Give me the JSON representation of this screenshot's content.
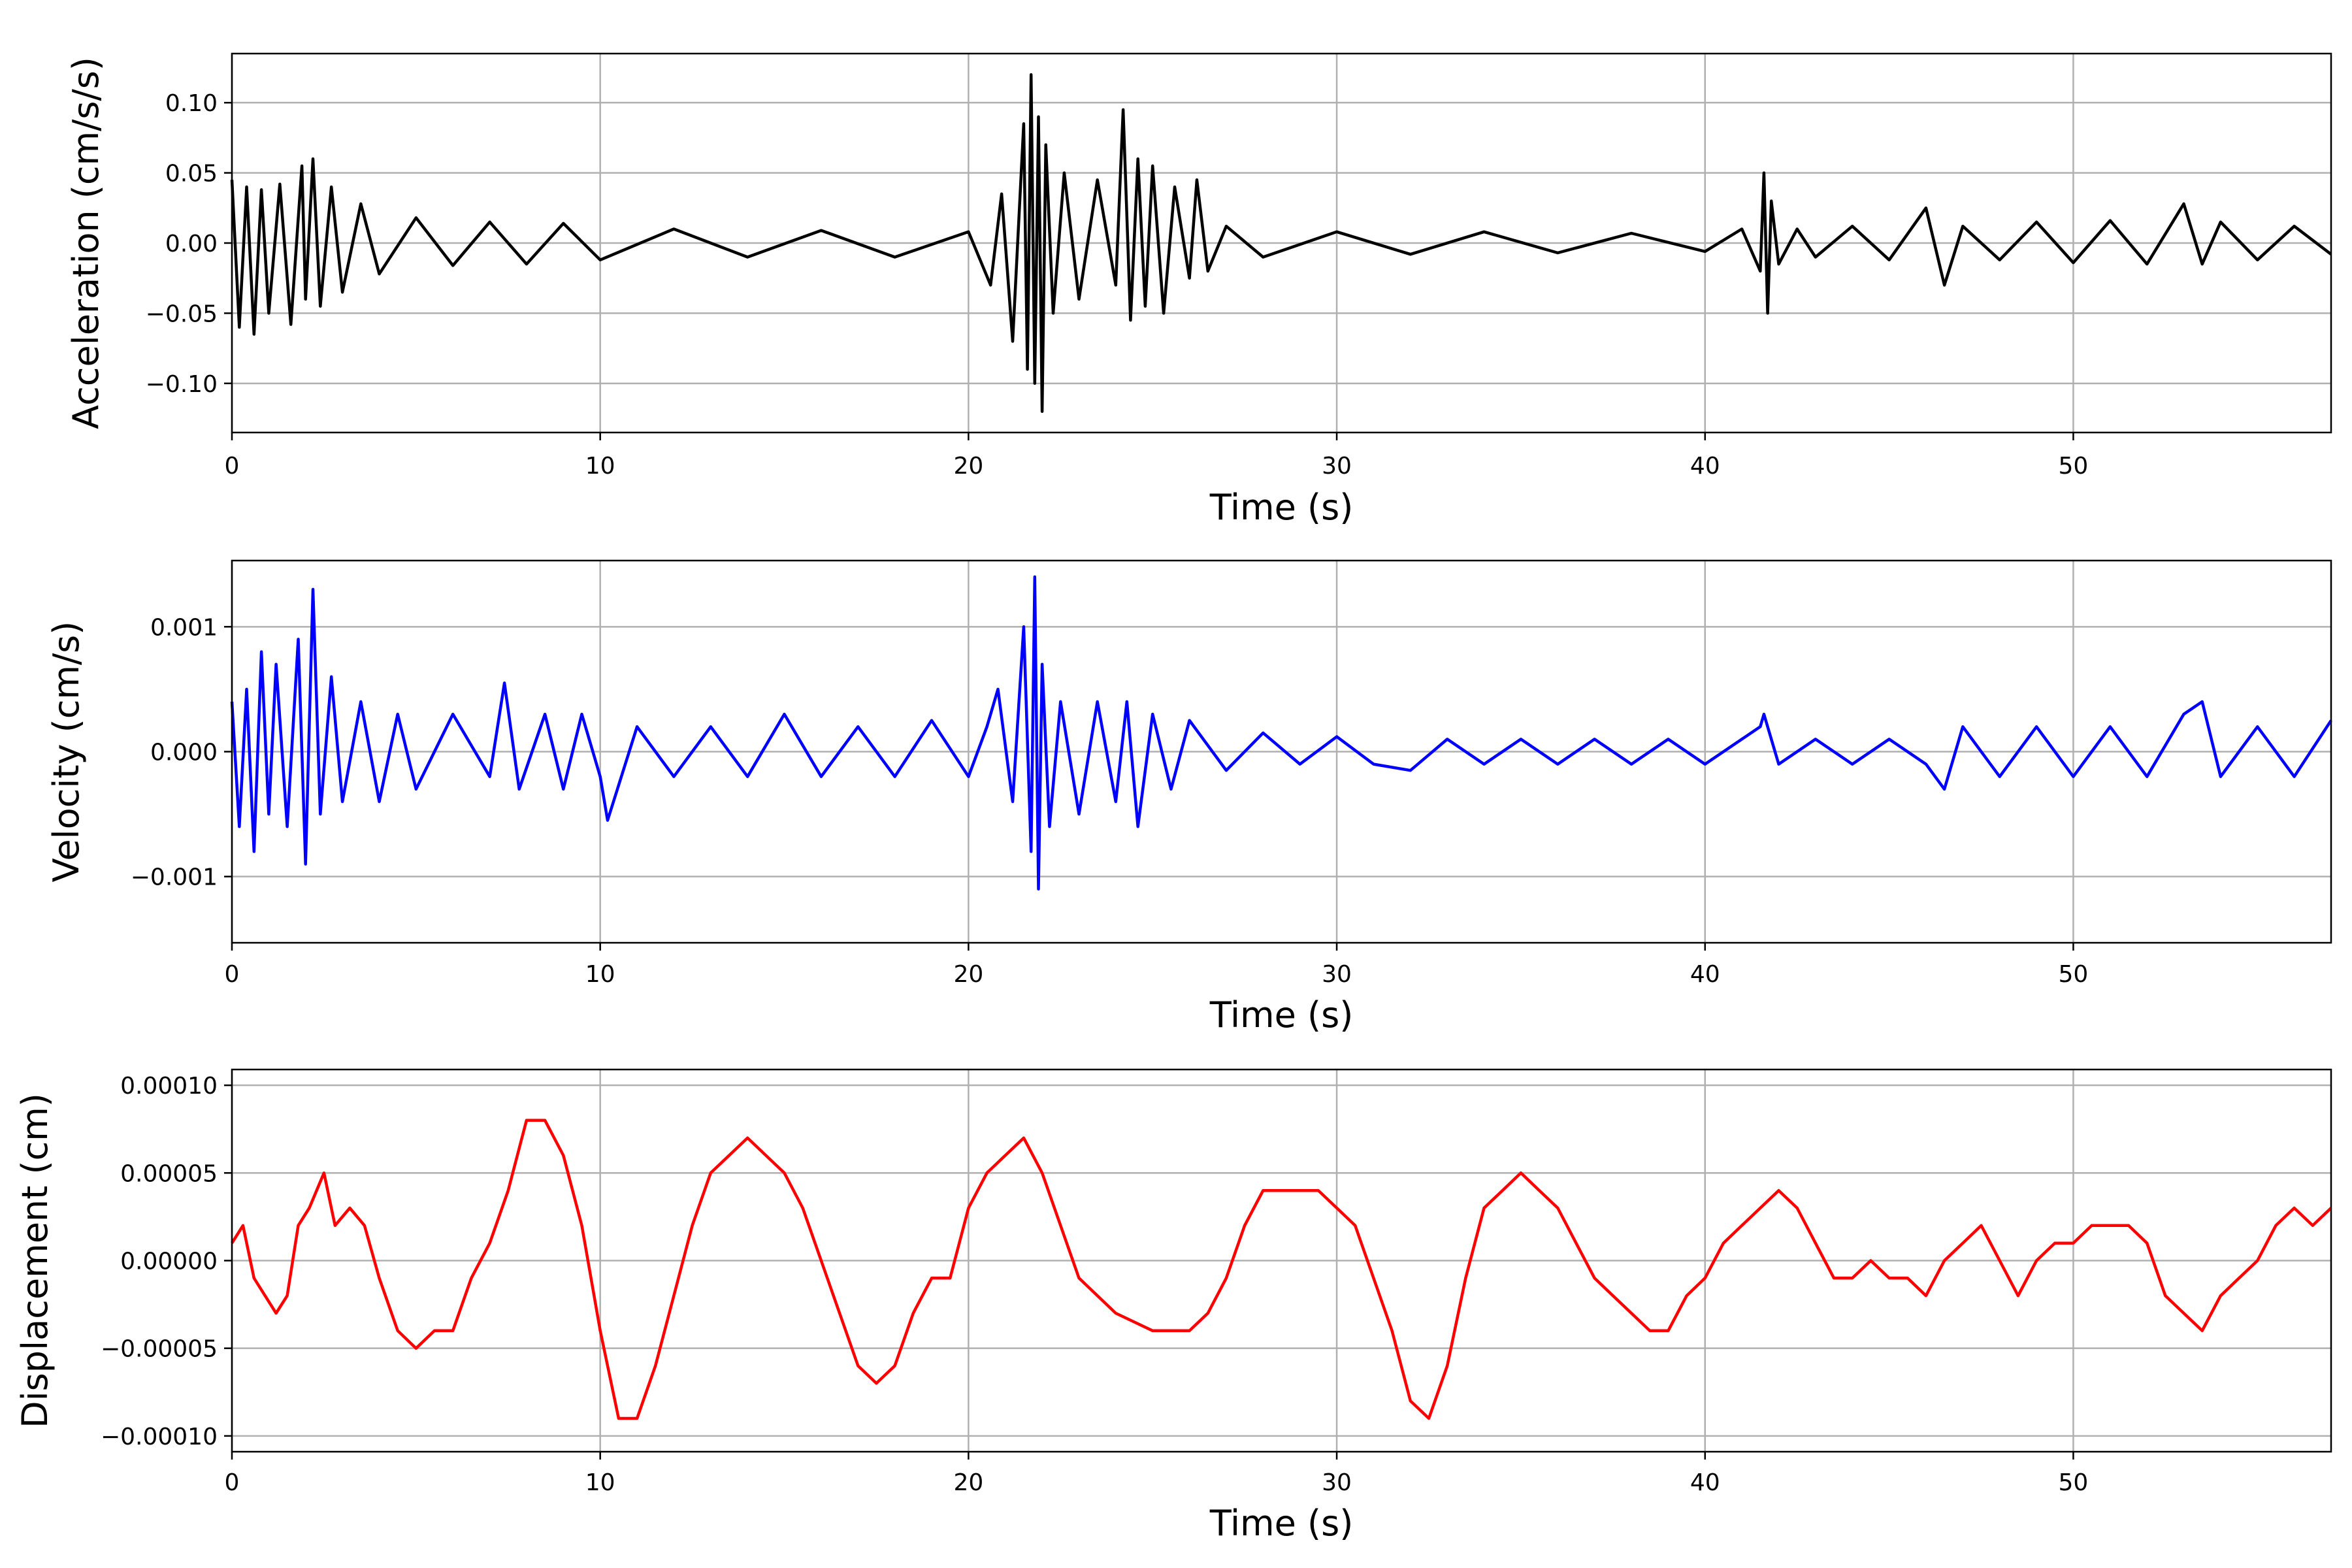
{
  "figure": {
    "background": "#ffffff",
    "grid_color": "#b0b0b0"
  },
  "chart_data": [
    {
      "type": "line",
      "title": "",
      "xlabel": "Time (s)",
      "ylabel": "Acceleration (cm/s/s)",
      "xlim": [
        0,
        57
      ],
      "ylim": [
        -0.135,
        0.135
      ],
      "xticks": [
        0,
        10,
        20,
        30,
        40,
        50
      ],
      "xtick_labels": [
        "0",
        "10",
        "20",
        "30",
        "40",
        "50"
      ],
      "yticks": [
        -0.1,
        -0.05,
        0.0,
        0.05,
        0.1
      ],
      "ytick_labels": [
        "−0.10",
        "−0.05",
        "0.00",
        "0.05",
        "0.10"
      ],
      "grid": true,
      "series": [
        {
          "color": "#000000",
          "x": [
            0,
            0.2,
            0.4,
            0.6,
            0.8,
            1.0,
            1.3,
            1.6,
            1.9,
            2.0,
            2.2,
            2.4,
            2.7,
            3.0,
            3.5,
            4.0,
            5.0,
            6.0,
            7.0,
            8.0,
            9.0,
            10.0,
            12.0,
            14.0,
            16.0,
            18.0,
            20.0,
            20.6,
            20.9,
            21.2,
            21.5,
            21.6,
            21.7,
            21.8,
            21.9,
            22.0,
            22.1,
            22.3,
            22.6,
            23.0,
            23.5,
            24.0,
            24.2,
            24.4,
            24.6,
            24.8,
            25.0,
            25.3,
            25.6,
            26.0,
            26.2,
            26.5,
            27.0,
            28.0,
            30.0,
            32.0,
            34.0,
            36.0,
            38.0,
            40.0,
            41.0,
            41.5,
            41.6,
            41.7,
            41.8,
            42.0,
            42.5,
            43.0,
            44.0,
            45.0,
            46.0,
            46.5,
            47.0,
            48.0,
            49.0,
            50.0,
            51.0,
            52.0,
            53.0,
            53.5,
            54.0,
            55.0,
            56.0,
            57.0
          ],
          "y": [
            0.045,
            -0.06,
            0.04,
            -0.065,
            0.038,
            -0.05,
            0.042,
            -0.058,
            0.055,
            -0.04,
            0.06,
            -0.045,
            0.04,
            -0.035,
            0.028,
            -0.022,
            0.018,
            -0.016,
            0.015,
            -0.015,
            0.014,
            -0.012,
            0.01,
            -0.01,
            0.009,
            -0.01,
            0.008,
            -0.03,
            0.035,
            -0.07,
            0.085,
            -0.09,
            0.12,
            -0.1,
            0.09,
            -0.12,
            0.07,
            -0.05,
            0.05,
            -0.04,
            0.045,
            -0.03,
            0.095,
            -0.055,
            0.06,
            -0.045,
            0.055,
            -0.05,
            0.04,
            -0.025,
            0.045,
            -0.02,
            0.012,
            -0.01,
            0.008,
            -0.008,
            0.008,
            -0.007,
            0.007,
            -0.006,
            0.01,
            -0.02,
            0.05,
            -0.05,
            0.03,
            -0.015,
            0.01,
            -0.01,
            0.012,
            -0.012,
            0.025,
            -0.03,
            0.012,
            -0.012,
            0.015,
            -0.014,
            0.016,
            -0.015,
            0.028,
            -0.015,
            0.015,
            -0.012,
            0.012,
            -0.008
          ]
        }
      ]
    },
    {
      "type": "line",
      "title": "",
      "xlabel": "Time (s)",
      "ylabel": "Velocity (cm/s)",
      "xlim": [
        0,
        57
      ],
      "ylim": [
        -0.00153,
        0.00153
      ],
      "xticks": [
        0,
        10,
        20,
        30,
        40,
        50
      ],
      "xtick_labels": [
        "0",
        "10",
        "20",
        "30",
        "40",
        "50"
      ],
      "yticks": [
        -0.001,
        0.0,
        0.001
      ],
      "ytick_labels": [
        "−0.001",
        "0.000",
        "0.001"
      ],
      "grid": true,
      "series": [
        {
          "color": "#0000ff",
          "x": [
            0,
            0.2,
            0.4,
            0.6,
            0.8,
            1.0,
            1.2,
            1.5,
            1.8,
            2.0,
            2.2,
            2.4,
            2.7,
            3.0,
            3.5,
            4.0,
            4.5,
            5.0,
            6.0,
            7.0,
            7.4,
            7.8,
            8.5,
            9.0,
            9.5,
            10.0,
            10.2,
            11.0,
            12.0,
            13.0,
            14.0,
            15.0,
            16.0,
            17.0,
            18.0,
            19.0,
            20.0,
            20.5,
            20.8,
            21.2,
            21.5,
            21.7,
            21.8,
            21.9,
            22.0,
            22.2,
            22.5,
            23.0,
            23.5,
            24.0,
            24.3,
            24.6,
            25.0,
            25.5,
            26.0,
            27.0,
            28.0,
            29.0,
            30.0,
            31.0,
            32.0,
            33.0,
            34.0,
            35.0,
            36.0,
            37.0,
            38.0,
            39.0,
            40.0,
            41.0,
            41.5,
            41.6,
            42.0,
            43.0,
            44.0,
            45.0,
            46.0,
            46.5,
            47.0,
            48.0,
            49.0,
            50.0,
            51.0,
            52.0,
            53.0,
            53.5,
            54.0,
            55.0,
            56.0,
            57.0
          ],
          "y": [
            0.0004,
            -0.0006,
            0.0005,
            -0.0008,
            0.0008,
            -0.0005,
            0.0007,
            -0.0006,
            0.0009,
            -0.0009,
            0.0013,
            -0.0005,
            0.0006,
            -0.0004,
            0.0004,
            -0.0004,
            0.0003,
            -0.0003,
            0.0003,
            -0.0002,
            0.00055,
            -0.0003,
            0.0003,
            -0.0003,
            0.0003,
            -0.0002,
            -0.00055,
            0.0002,
            -0.0002,
            0.0002,
            -0.0002,
            0.0003,
            -0.0002,
            0.0002,
            -0.0002,
            0.00025,
            -0.0002,
            0.0002,
            0.0005,
            -0.0004,
            0.001,
            -0.0008,
            0.0014,
            -0.0011,
            0.0007,
            -0.0006,
            0.0004,
            -0.0005,
            0.0004,
            -0.0004,
            0.0004,
            -0.0006,
            0.0003,
            -0.0003,
            0.00025,
            -0.00015,
            0.00015,
            -0.0001,
            0.00012,
            -0.0001,
            -0.00015,
            0.0001,
            -0.0001,
            0.0001,
            -0.0001,
            0.0001,
            -0.0001,
            0.0001,
            -0.0001,
            0.0001,
            0.0002,
            0.0003,
            -0.0001,
            0.0001,
            -0.0001,
            0.0001,
            -0.0001,
            -0.0003,
            0.0002,
            -0.0002,
            0.0002,
            -0.0002,
            0.0002,
            -0.0002,
            0.0003,
            0.0004,
            -0.0002,
            0.0002,
            -0.0002,
            0.00025
          ]
        }
      ]
    },
    {
      "type": "line",
      "title": "",
      "xlabel": "Time (s)",
      "ylabel": "Displacement (cm)",
      "xlim": [
        0,
        57
      ],
      "ylim": [
        -0.000109,
        0.000109
      ],
      "xticks": [
        0,
        10,
        20,
        30,
        40,
        50
      ],
      "xtick_labels": [
        "0",
        "10",
        "20",
        "30",
        "40",
        "50"
      ],
      "yticks": [
        -0.0001,
        -5e-05,
        0.0,
        5e-05,
        0.0001
      ],
      "ytick_labels": [
        "−0.00010",
        "−0.00005",
        "0.00000",
        "0.00005",
        "0.00010"
      ],
      "grid": true,
      "series": [
        {
          "color": "#ff0000",
          "x": [
            0,
            0.3,
            0.6,
            0.9,
            1.2,
            1.5,
            1.8,
            2.1,
            2.5,
            2.8,
            3.2,
            3.6,
            4.0,
            4.5,
            5.0,
            5.5,
            6.0,
            6.5,
            7.0,
            7.5,
            8.0,
            8.5,
            9.0,
            9.5,
            10.0,
            10.5,
            11.0,
            11.5,
            12.0,
            12.5,
            13.0,
            13.5,
            14.0,
            14.5,
            15.0,
            15.5,
            16.0,
            16.5,
            17.0,
            17.5,
            18.0,
            18.5,
            19.0,
            19.5,
            20.0,
            20.5,
            21.0,
            21.5,
            22.0,
            22.5,
            23.0,
            24.0,
            25.0,
            26.0,
            26.5,
            27.0,
            27.5,
            28.0,
            28.5,
            29.0,
            29.5,
            30.0,
            30.5,
            31.0,
            31.5,
            32.0,
            32.5,
            33.0,
            33.5,
            34.0,
            34.5,
            35.0,
            35.5,
            36.0,
            36.5,
            37.0,
            37.5,
            38.0,
            38.5,
            39.0,
            39.5,
            40.0,
            40.5,
            41.0,
            41.5,
            42.0,
            42.5,
            43.0,
            43.5,
            44.0,
            44.5,
            45.0,
            45.5,
            46.0,
            46.5,
            47.0,
            47.5,
            48.0,
            48.5,
            49.0,
            49.5,
            50.0,
            50.5,
            51.0,
            51.5,
            52.0,
            52.5,
            53.0,
            53.5,
            54.0,
            54.5,
            55.0,
            55.5,
            56.0,
            56.5,
            57.0
          ],
          "y": [
            1e-05,
            2e-05,
            -1e-05,
            -2e-05,
            -3e-05,
            -2e-05,
            2e-05,
            3e-05,
            5e-05,
            2e-05,
            3e-05,
            2e-05,
            -1e-05,
            -4e-05,
            -5e-05,
            -4e-05,
            -4e-05,
            -1e-05,
            1e-05,
            4e-05,
            8e-05,
            8e-05,
            6e-05,
            2e-05,
            -4e-05,
            -9e-05,
            -9e-05,
            -6e-05,
            -2e-05,
            2e-05,
            5e-05,
            6e-05,
            7e-05,
            6e-05,
            5e-05,
            3e-05,
            0.0,
            -3e-05,
            -6e-05,
            -7e-05,
            -6e-05,
            -3e-05,
            -1e-05,
            -1e-05,
            3e-05,
            5e-05,
            6e-05,
            7e-05,
            5e-05,
            2e-05,
            -1e-05,
            -3e-05,
            -4e-05,
            -4e-05,
            -3e-05,
            -1e-05,
            2e-05,
            4e-05,
            4e-05,
            4e-05,
            4e-05,
            3e-05,
            2e-05,
            -1e-05,
            -4e-05,
            -8e-05,
            -9e-05,
            -6e-05,
            -1e-05,
            3e-05,
            4e-05,
            5e-05,
            4e-05,
            3e-05,
            1e-05,
            -1e-05,
            -2e-05,
            -3e-05,
            -4e-05,
            -4e-05,
            -2e-05,
            -1e-05,
            1e-05,
            2e-05,
            3e-05,
            4e-05,
            3e-05,
            1e-05,
            -1e-05,
            -1e-05,
            0.0,
            -1e-05,
            -1e-05,
            -2e-05,
            0.0,
            1e-05,
            2e-05,
            0.0,
            -2e-05,
            0.0,
            1e-05,
            1e-05,
            2e-05,
            2e-05,
            2e-05,
            1e-05,
            -2e-05,
            -3e-05,
            -4e-05,
            -2e-05,
            -1e-05,
            0.0,
            2e-05,
            3e-05,
            2e-05,
            3e-05
          ]
        }
      ]
    }
  ]
}
